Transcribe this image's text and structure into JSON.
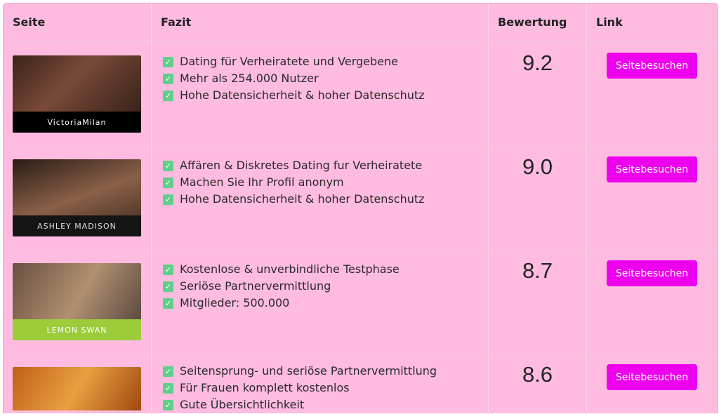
{
  "header": {
    "site": "Seite",
    "summary": "Fazit",
    "rating": "Bewertung",
    "link": "Link"
  },
  "colors": {
    "background": "#ffbbe0",
    "button": "#ee00ee",
    "check": "#5fcf8a"
  },
  "rows": [
    {
      "brand": "VictoriaMilan",
      "features": [
        "Dating für Verheiratete und Vergebene",
        "Mehr als 254.000 Nutzer",
        "Hohe Datensicherheit & hoher Datenschutz"
      ],
      "score": "9.2",
      "button": "Seitebesuchen"
    },
    {
      "brand": "ASHLEY MADISON",
      "features": [
        "Affären & Diskretes Dating fur Verheiratete",
        "Machen Sie Ihr Profil anonym",
        "Hohe Datensicherheit & hoher Datenschutz"
      ],
      "score": "9.0",
      "button": "Seitebesuchen"
    },
    {
      "brand": "LEMON SWAN",
      "features": [
        "Kostenlose & unverbindliche Testphase",
        "Seriöse Partnervermittlung",
        "Mitglieder: 500.000"
      ],
      "score": "8.7",
      "button": "Seitebesuchen"
    },
    {
      "brand": "",
      "features": [
        "Seitensprung- und seriöse Partnervermittlung",
        "Für Frauen komplett kostenlos",
        "Gute Übersichtlichkeit"
      ],
      "score": "8.6",
      "button": "Seitebesuchen"
    }
  ]
}
